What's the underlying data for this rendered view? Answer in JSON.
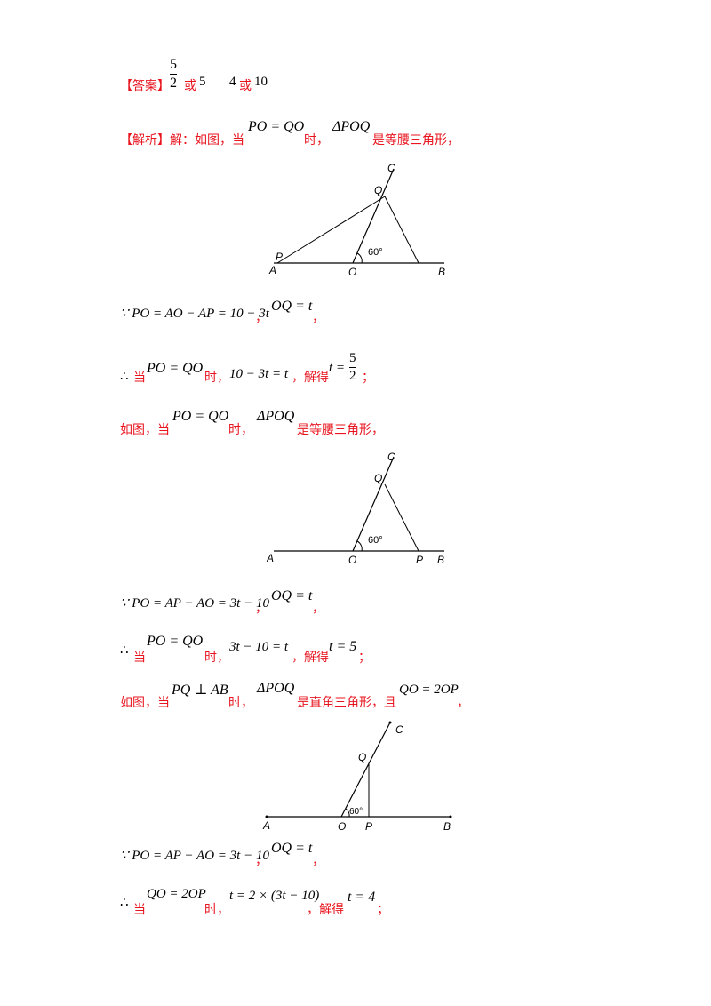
{
  "answer": {
    "label": "【答案】",
    "frac_num": "5",
    "frac_den": "2",
    "or1": "或",
    "val1": "5",
    "val2": "4",
    "or2": "或",
    "val3": "10"
  },
  "analysis": {
    "label": "【解析】",
    "intro": "解：如图，当",
    "eq1": "PO = QO",
    "when": "时，",
    "tri": "ΔPOQ",
    "isosceles": "是等腰三角形，",
    "right": "是直角三角形，且",
    "asif": "如图，当"
  },
  "case1": {
    "step1": "∵ PO = AO − AP = 10 − 3t",
    "comma": "，",
    "oq": "OQ = t",
    "therefore": "∴",
    "dang": "当",
    "eq": "PO = QO",
    "shi": "时，",
    "eq2": "10 − 3t = t",
    "solve": "，解得",
    "t_lhs": "t =",
    "t_num": "5",
    "t_den": "2",
    "semi": "；"
  },
  "case2": {
    "step1": "∵ PO = AP − AO = 3t − 10",
    "oq": "OQ = t",
    "eq": "PO = QO",
    "eq2": "3t − 10 = t",
    "result": "t = 5"
  },
  "case3": {
    "cond": "PQ ⊥ AB",
    "rel": "QO = 2OP",
    "step1": "∵ PO = AP − AO = 3t − 10",
    "oq": "OQ = t",
    "eq2": "t = 2 × (3t − 10)",
    "result": "t = 4"
  },
  "figures": {
    "f1": {
      "A": "A",
      "P": "P",
      "O": "O",
      "B": "B",
      "Q": "Q",
      "C": "C",
      "angle": "60°"
    },
    "f2": {
      "A": "A",
      "P": "P",
      "O": "O",
      "B": "B",
      "Q": "Q",
      "C": "C",
      "angle": "60°"
    },
    "f3": {
      "A": "A",
      "P": "P",
      "O": "O",
      "B": "B",
      "Q": "Q",
      "C": "C",
      "angle": "60°"
    }
  }
}
